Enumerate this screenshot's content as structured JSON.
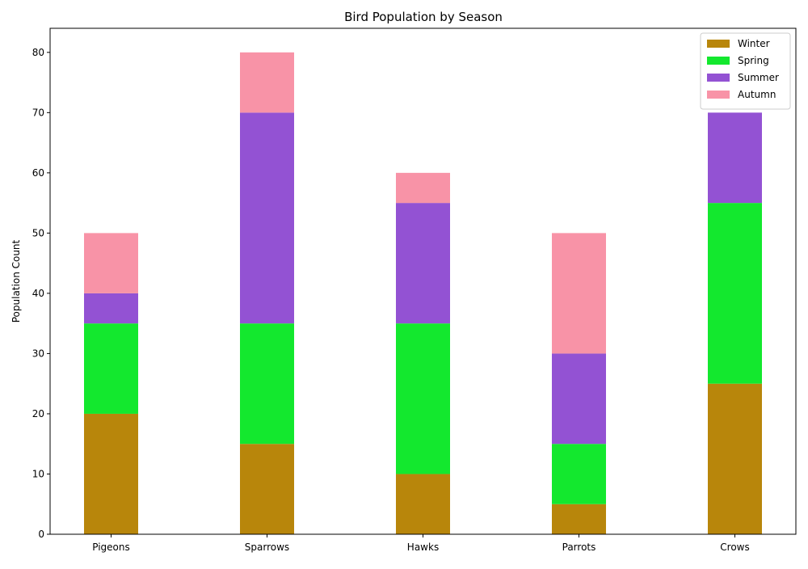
{
  "chart_data": {
    "type": "bar",
    "stacked": true,
    "title": "Bird Population by Season",
    "xlabel": "",
    "ylabel": "Population Count",
    "categories": [
      "Pigeons",
      "Sparrows",
      "Hawks",
      "Parrots",
      "Crows"
    ],
    "series": [
      {
        "name": "Winter",
        "color": "#b8860b",
        "values": [
          20,
          15,
          10,
          5,
          25
        ]
      },
      {
        "name": "Spring",
        "color": "#13e82e",
        "values": [
          15,
          20,
          25,
          10,
          30
        ]
      },
      {
        "name": "Summer",
        "color": "#9352d3",
        "values": [
          5,
          35,
          20,
          15,
          15
        ]
      },
      {
        "name": "Autumn",
        "color": "#f893a7",
        "values": [
          10,
          10,
          5,
          20,
          0
        ]
      }
    ],
    "ylim": [
      0,
      84
    ],
    "yticks": [
      0,
      10,
      20,
      30,
      40,
      50,
      60,
      70,
      80
    ],
    "grid": false,
    "legend_position": "top-right"
  }
}
